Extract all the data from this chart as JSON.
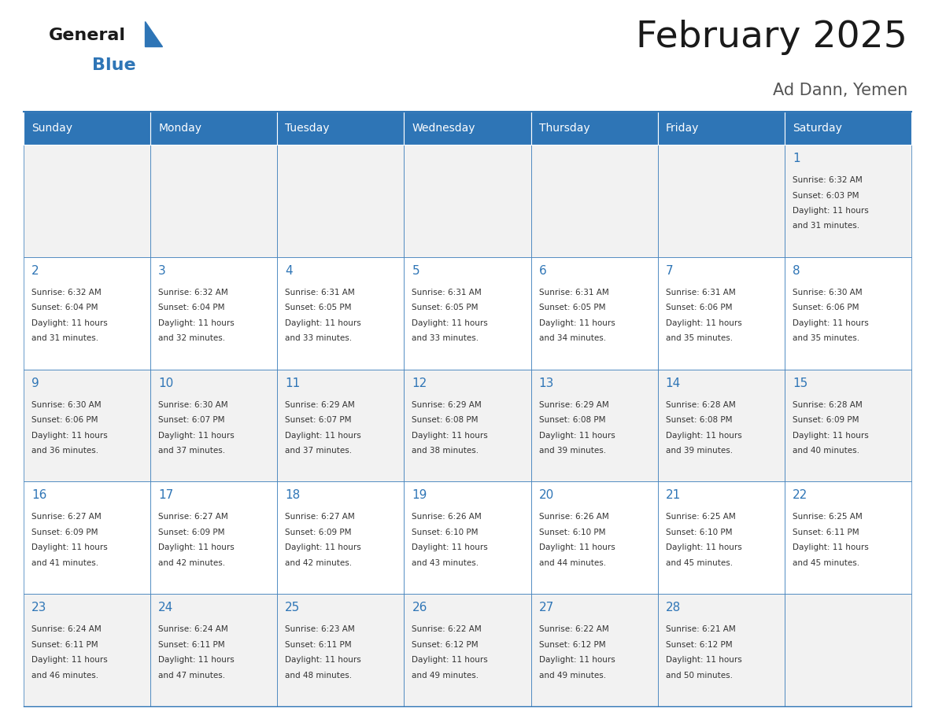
{
  "title": "February 2025",
  "subtitle": "Ad Dann, Yemen",
  "header_bg": "#2E75B6",
  "header_text_color": "#FFFFFF",
  "cell_bg_odd": "#F2F2F2",
  "cell_bg_even": "#FFFFFF",
  "border_color": "#2E75B6",
  "days_of_week": [
    "Sunday",
    "Monday",
    "Tuesday",
    "Wednesday",
    "Thursday",
    "Friday",
    "Saturday"
  ],
  "title_color": "#1a1a1a",
  "subtitle_color": "#555555",
  "day_number_color": "#2E75B6",
  "info_color": "#333333",
  "logo_general_color": "#1a1a1a",
  "logo_blue_color": "#2E75B6",
  "logo_triangle_color": "#2E75B6",
  "calendar_data": [
    [
      {
        "day": 0
      },
      {
        "day": 0
      },
      {
        "day": 0
      },
      {
        "day": 0
      },
      {
        "day": 0
      },
      {
        "day": 0
      },
      {
        "day": 1,
        "sunrise": "6:32 AM",
        "sunset": "6:03 PM",
        "daylight_line1": "Daylight: 11 hours",
        "daylight_line2": "and 31 minutes."
      }
    ],
    [
      {
        "day": 2,
        "sunrise": "6:32 AM",
        "sunset": "6:04 PM",
        "daylight_line1": "Daylight: 11 hours",
        "daylight_line2": "and 31 minutes."
      },
      {
        "day": 3,
        "sunrise": "6:32 AM",
        "sunset": "6:04 PM",
        "daylight_line1": "Daylight: 11 hours",
        "daylight_line2": "and 32 minutes."
      },
      {
        "day": 4,
        "sunrise": "6:31 AM",
        "sunset": "6:05 PM",
        "daylight_line1": "Daylight: 11 hours",
        "daylight_line2": "and 33 minutes."
      },
      {
        "day": 5,
        "sunrise": "6:31 AM",
        "sunset": "6:05 PM",
        "daylight_line1": "Daylight: 11 hours",
        "daylight_line2": "and 33 minutes."
      },
      {
        "day": 6,
        "sunrise": "6:31 AM",
        "sunset": "6:05 PM",
        "daylight_line1": "Daylight: 11 hours",
        "daylight_line2": "and 34 minutes."
      },
      {
        "day": 7,
        "sunrise": "6:31 AM",
        "sunset": "6:06 PM",
        "daylight_line1": "Daylight: 11 hours",
        "daylight_line2": "and 35 minutes."
      },
      {
        "day": 8,
        "sunrise": "6:30 AM",
        "sunset": "6:06 PM",
        "daylight_line1": "Daylight: 11 hours",
        "daylight_line2": "and 35 minutes."
      }
    ],
    [
      {
        "day": 9,
        "sunrise": "6:30 AM",
        "sunset": "6:06 PM",
        "daylight_line1": "Daylight: 11 hours",
        "daylight_line2": "and 36 minutes."
      },
      {
        "day": 10,
        "sunrise": "6:30 AM",
        "sunset": "6:07 PM",
        "daylight_line1": "Daylight: 11 hours",
        "daylight_line2": "and 37 minutes."
      },
      {
        "day": 11,
        "sunrise": "6:29 AM",
        "sunset": "6:07 PM",
        "daylight_line1": "Daylight: 11 hours",
        "daylight_line2": "and 37 minutes."
      },
      {
        "day": 12,
        "sunrise": "6:29 AM",
        "sunset": "6:08 PM",
        "daylight_line1": "Daylight: 11 hours",
        "daylight_line2": "and 38 minutes."
      },
      {
        "day": 13,
        "sunrise": "6:29 AM",
        "sunset": "6:08 PM",
        "daylight_line1": "Daylight: 11 hours",
        "daylight_line2": "and 39 minutes."
      },
      {
        "day": 14,
        "sunrise": "6:28 AM",
        "sunset": "6:08 PM",
        "daylight_line1": "Daylight: 11 hours",
        "daylight_line2": "and 39 minutes."
      },
      {
        "day": 15,
        "sunrise": "6:28 AM",
        "sunset": "6:09 PM",
        "daylight_line1": "Daylight: 11 hours",
        "daylight_line2": "and 40 minutes."
      }
    ],
    [
      {
        "day": 16,
        "sunrise": "6:27 AM",
        "sunset": "6:09 PM",
        "daylight_line1": "Daylight: 11 hours",
        "daylight_line2": "and 41 minutes."
      },
      {
        "day": 17,
        "sunrise": "6:27 AM",
        "sunset": "6:09 PM",
        "daylight_line1": "Daylight: 11 hours",
        "daylight_line2": "and 42 minutes."
      },
      {
        "day": 18,
        "sunrise": "6:27 AM",
        "sunset": "6:09 PM",
        "daylight_line1": "Daylight: 11 hours",
        "daylight_line2": "and 42 minutes."
      },
      {
        "day": 19,
        "sunrise": "6:26 AM",
        "sunset": "6:10 PM",
        "daylight_line1": "Daylight: 11 hours",
        "daylight_line2": "and 43 minutes."
      },
      {
        "day": 20,
        "sunrise": "6:26 AM",
        "sunset": "6:10 PM",
        "daylight_line1": "Daylight: 11 hours",
        "daylight_line2": "and 44 minutes."
      },
      {
        "day": 21,
        "sunrise": "6:25 AM",
        "sunset": "6:10 PM",
        "daylight_line1": "Daylight: 11 hours",
        "daylight_line2": "and 45 minutes."
      },
      {
        "day": 22,
        "sunrise": "6:25 AM",
        "sunset": "6:11 PM",
        "daylight_line1": "Daylight: 11 hours",
        "daylight_line2": "and 45 minutes."
      }
    ],
    [
      {
        "day": 23,
        "sunrise": "6:24 AM",
        "sunset": "6:11 PM",
        "daylight_line1": "Daylight: 11 hours",
        "daylight_line2": "and 46 minutes."
      },
      {
        "day": 24,
        "sunrise": "6:24 AM",
        "sunset": "6:11 PM",
        "daylight_line1": "Daylight: 11 hours",
        "daylight_line2": "and 47 minutes."
      },
      {
        "day": 25,
        "sunrise": "6:23 AM",
        "sunset": "6:11 PM",
        "daylight_line1": "Daylight: 11 hours",
        "daylight_line2": "and 48 minutes."
      },
      {
        "day": 26,
        "sunrise": "6:22 AM",
        "sunset": "6:12 PM",
        "daylight_line1": "Daylight: 11 hours",
        "daylight_line2": "and 49 minutes."
      },
      {
        "day": 27,
        "sunrise": "6:22 AM",
        "sunset": "6:12 PM",
        "daylight_line1": "Daylight: 11 hours",
        "daylight_line2": "and 49 minutes."
      },
      {
        "day": 28,
        "sunrise": "6:21 AM",
        "sunset": "6:12 PM",
        "daylight_line1": "Daylight: 11 hours",
        "daylight_line2": "and 50 minutes."
      },
      {
        "day": 0
      }
    ]
  ]
}
